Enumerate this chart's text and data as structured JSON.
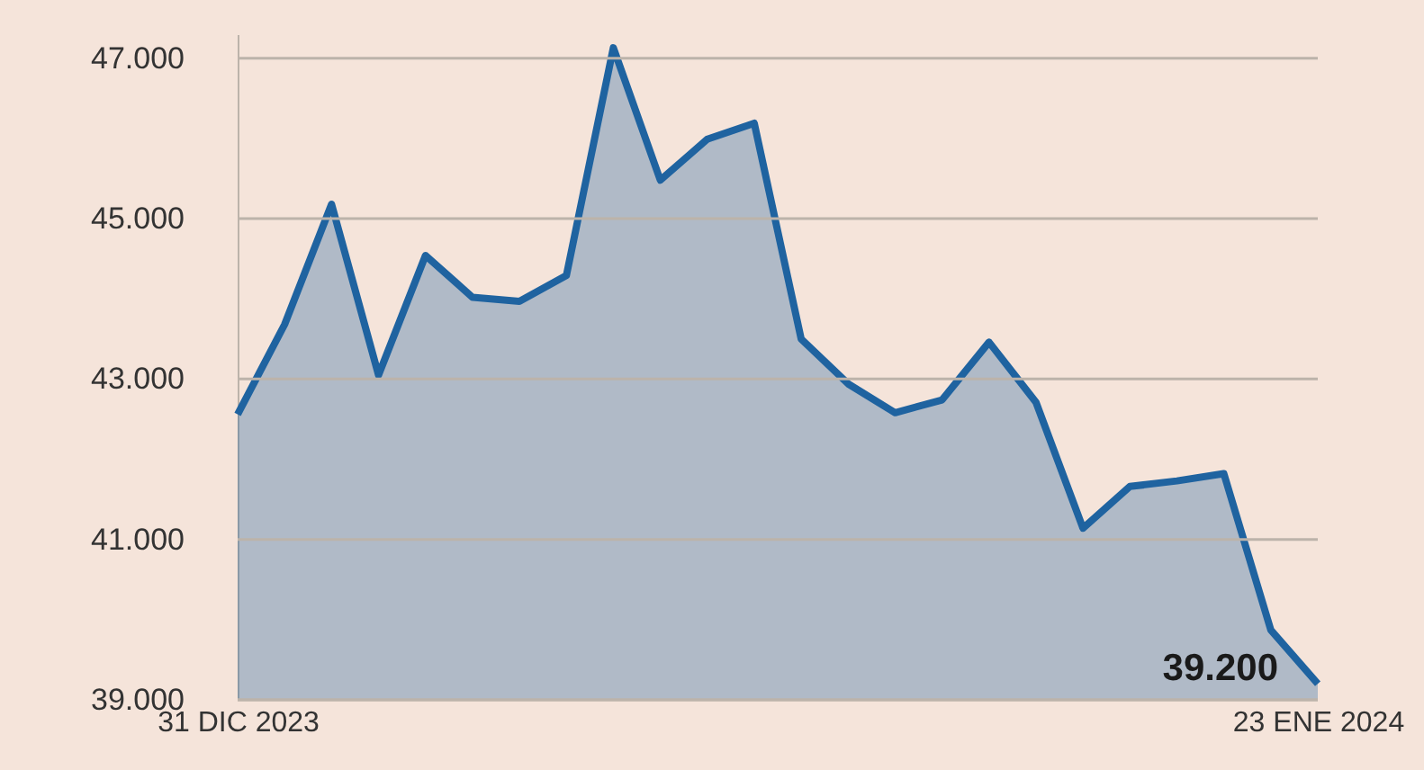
{
  "chart_data": {
    "type": "area",
    "x": [
      "2023-12-31",
      "2024-01-01",
      "2024-01-02",
      "2024-01-03",
      "2024-01-04",
      "2024-01-05",
      "2024-01-06",
      "2024-01-07",
      "2024-01-08",
      "2024-01-09",
      "2024-01-10",
      "2024-01-11",
      "2024-01-12",
      "2024-01-13",
      "2024-01-14",
      "2024-01-15",
      "2024-01-16",
      "2024-01-17",
      "2024-01-18",
      "2024-01-19",
      "2024-01-20",
      "2024-01-21",
      "2024-01-22",
      "2024-01-23"
    ],
    "series": [
      {
        "color": "#1f63a0",
        "values": [
          42560,
          43680,
          45180,
          43050,
          44540,
          44020,
          43970,
          44290,
          47130,
          45480,
          45990,
          46190,
          43500,
          42940,
          42580,
          42740,
          43460,
          42710,
          41140,
          41660,
          41730,
          41820,
          39870,
          39200
        ]
      }
    ],
    "xlim": [
      "2023-12-31",
      "2024-01-23"
    ],
    "xticks": [
      {
        "value": "2023-12-31",
        "label": "31 DIC 2023"
      },
      {
        "value": "2024-01-23",
        "label": "23 ENE 2024"
      }
    ],
    "ylim": [
      39000,
      47300
    ],
    "yticks": [
      {
        "value": 39000,
        "label": "39.000"
      },
      {
        "value": 41000,
        "label": "41.000"
      },
      {
        "value": 43000,
        "label": "43.000"
      },
      {
        "value": 45000,
        "label": "45.000"
      },
      {
        "value": 47000,
        "label": "47.000"
      }
    ],
    "grid": "y",
    "annotations": [
      {
        "text": "39.200",
        "x": "2024-01-23",
        "y": 39200
      }
    ]
  }
}
